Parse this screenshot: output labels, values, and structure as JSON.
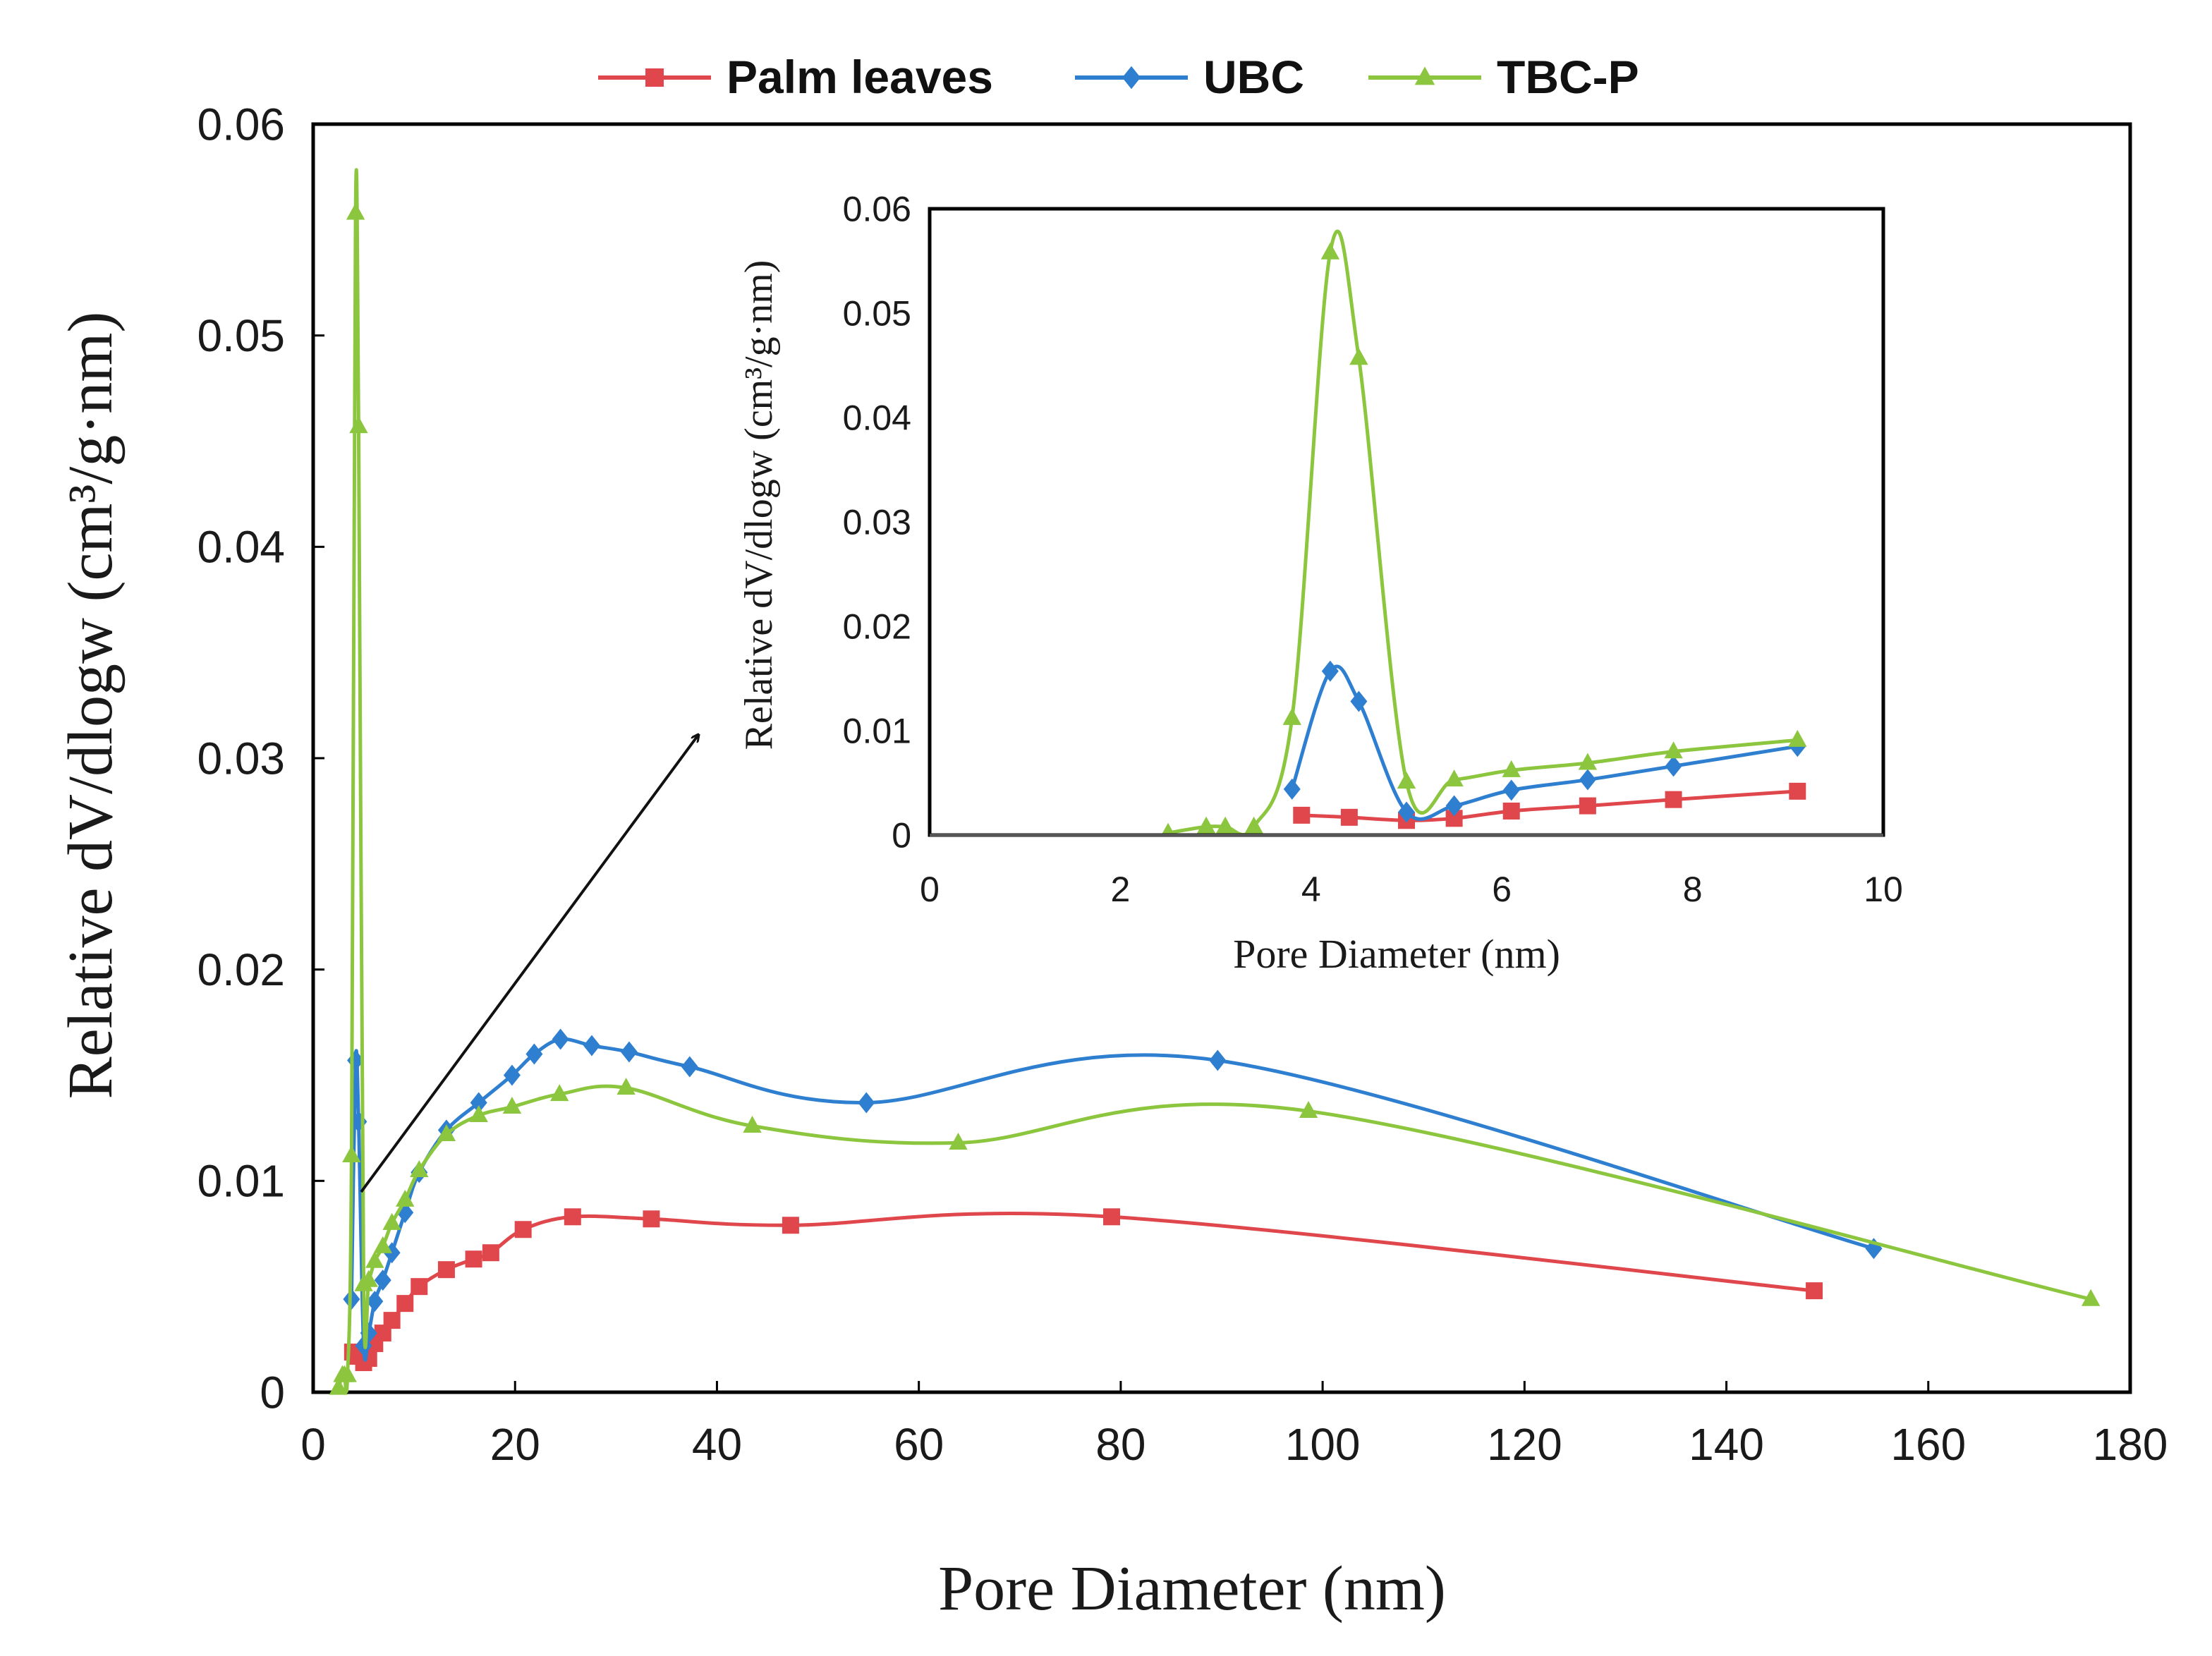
{
  "chart_data": [
    {
      "type": "line",
      "role": "main",
      "xlabel": "Pore Diameter (nm)",
      "ylabel": "Relative dV/dlogw (cm³/g·nm)",
      "xlim": [
        0,
        180
      ],
      "ylim": [
        0,
        0.06
      ],
      "xticks": [
        0,
        20,
        40,
        60,
        80,
        100,
        120,
        140,
        160,
        180
      ],
      "xtick_labels": [
        "0",
        "20",
        "40",
        "60",
        "80",
        "100",
        "120",
        "140",
        "160",
        "180"
      ],
      "yticks": [
        0,
        0.01,
        0.02,
        0.03,
        0.04,
        0.05,
        0.06
      ],
      "ytick_labels": [
        "0",
        "0.01",
        "0.02",
        "0.03",
        "0.04",
        "0.05",
        "0.06"
      ],
      "legend": {
        "position": "top-center"
      },
      "series": [
        {
          "name": "Palm leaves",
          "color": "#e0474c",
          "marker": "square",
          "x": [
            3.9,
            4.4,
            5.0,
            5.5,
            6.1,
            6.9,
            7.8,
            9.1,
            10.5,
            13.2,
            15.9,
            17.6,
            20.8,
            25.7,
            33.5,
            47.3,
            79.1,
            148.7
          ],
          "y": [
            0.0019,
            0.0017,
            0.0014,
            0.0016,
            0.0023,
            0.0028,
            0.0034,
            0.0042,
            0.005,
            0.0058,
            0.0063,
            0.0066,
            0.0077,
            0.0083,
            0.0082,
            0.0079,
            0.0083,
            0.0048
          ]
        },
        {
          "name": "UBC",
          "color": "#2f7fd1",
          "marker": "diamond",
          "x": [
            3.8,
            4.2,
            4.5,
            5.0,
            5.5,
            6.1,
            6.9,
            7.8,
            9.1,
            10.5,
            13.2,
            16.4,
            19.7,
            21.9,
            24.5,
            27.6,
            31.3,
            37.3,
            54.8,
            89.6,
            154.6
          ],
          "y": [
            0.0044,
            0.0157,
            0.0128,
            0.0022,
            0.0028,
            0.0043,
            0.0053,
            0.0066,
            0.0085,
            0.0104,
            0.0124,
            0.0137,
            0.015,
            0.016,
            0.0167,
            0.0164,
            0.0161,
            0.0154,
            0.0137,
            0.0157,
            0.0068
          ]
        },
        {
          "name": "TBC-P",
          "color": "#8cc63e",
          "marker": "triangle",
          "x": [
            2.5,
            2.9,
            3.1,
            3.4,
            3.8,
            4.2,
            4.5,
            5.0,
            5.5,
            6.1,
            6.9,
            7.8,
            9.1,
            10.5,
            13.2,
            16.4,
            19.7,
            24.4,
            31.0,
            43.5,
            63.9,
            98.6,
            176.1
          ],
          "y": [
            0.0002,
            0.0008,
            0.0008,
            0.0008,
            0.0112,
            0.0558,
            0.0457,
            0.0051,
            0.0053,
            0.0062,
            0.0069,
            0.008,
            0.0091,
            0.0105,
            0.0122,
            0.0131,
            0.0135,
            0.0141,
            0.0144,
            0.0126,
            0.0118,
            0.0133,
            0.0044
          ]
        }
      ]
    },
    {
      "type": "line",
      "role": "inset",
      "xlabel": "Pore Diameter (nm)",
      "ylabel": "Relative dV/dlogw (cm³/g·nm)",
      "xlim": [
        0,
        10
      ],
      "ylim": [
        0,
        0.06
      ],
      "xticks": [
        0,
        2,
        4,
        6,
        8,
        10
      ],
      "xtick_labels": [
        "0",
        "2",
        "4",
        "6",
        "8",
        "10"
      ],
      "yticks": [
        0,
        0.01,
        0.02,
        0.03,
        0.04,
        0.05,
        0.06
      ],
      "ytick_labels": [
        "0",
        "0.01",
        "0.02",
        "0.03",
        "0.04",
        "0.05",
        "0.06"
      ]
    }
  ]
}
